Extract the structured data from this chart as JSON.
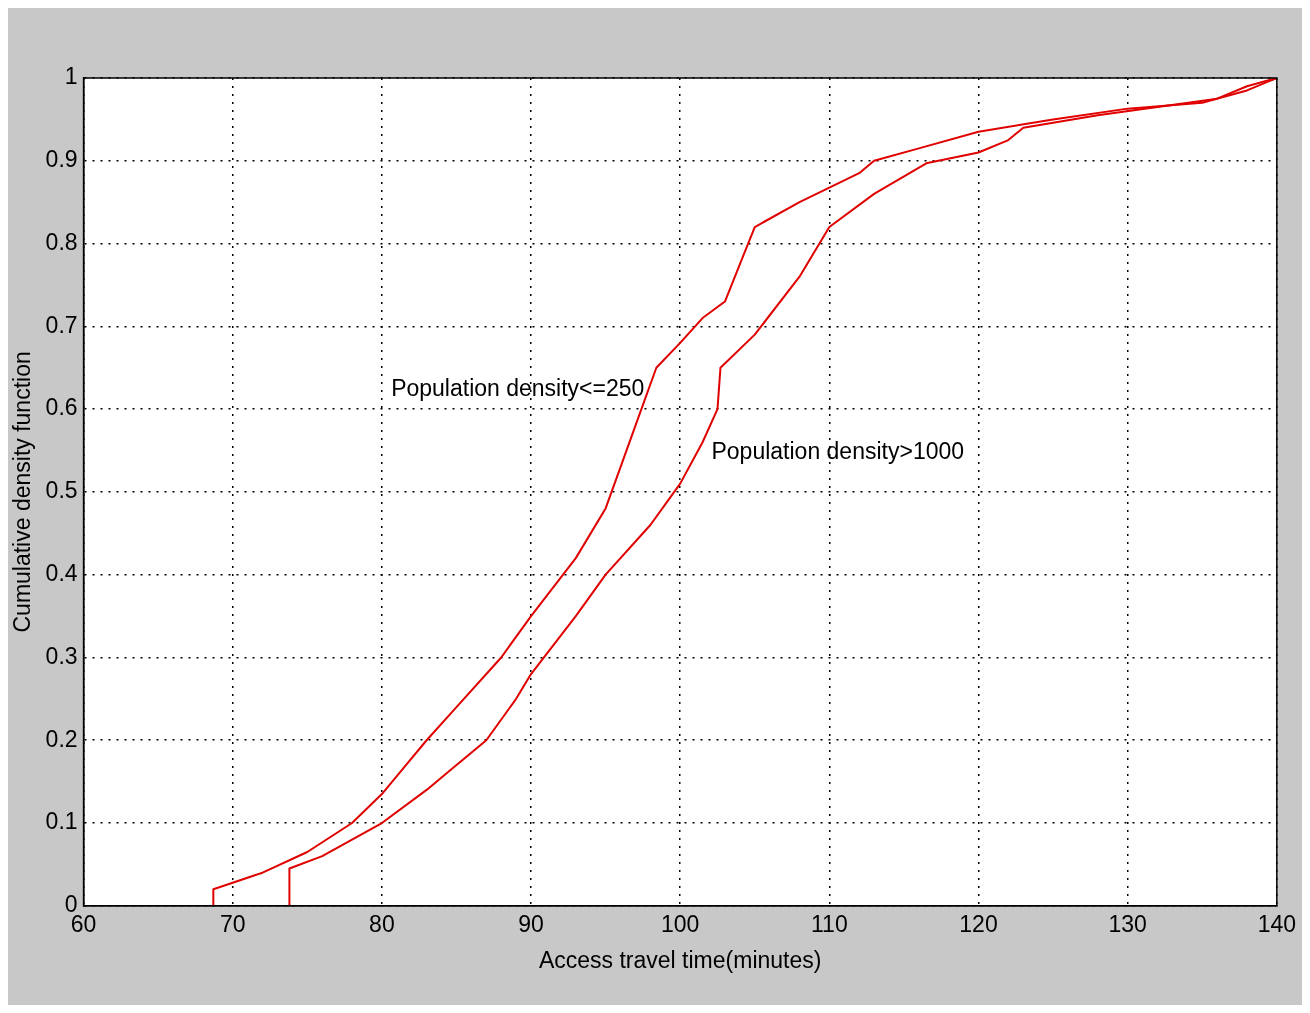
{
  "chart_data": {
    "type": "line",
    "xlabel": "Access travel time(minutes)",
    "ylabel": "Cumulative density function",
    "xlim": [
      60,
      140
    ],
    "xticks": [
      60,
      70,
      80,
      90,
      100,
      110,
      120,
      130,
      140
    ],
    "ylim": [
      0,
      1
    ],
    "yticks": [
      0,
      0.1,
      0.2,
      0.3,
      0.4,
      0.5,
      0.6,
      0.7,
      0.8,
      0.9,
      1
    ],
    "grid": true,
    "legend": false,
    "marker": "none",
    "line_style": "solid",
    "series": [
      {
        "name": "Population density<=250",
        "color": "#e00000",
        "x": [
          68.7,
          68.7,
          72,
          75,
          78,
          80,
          83,
          85,
          88,
          90,
          93,
          95,
          96,
          97,
          98.4,
          100,
          101.5,
          103,
          105,
          108,
          112,
          113,
          116,
          120,
          125,
          130,
          135,
          138,
          140
        ],
        "values": [
          0,
          0.02,
          0.04,
          0.065,
          0.1,
          0.135,
          0.2,
          0.24,
          0.3,
          0.35,
          0.42,
          0.48,
          0.53,
          0.58,
          0.65,
          0.68,
          0.71,
          0.73,
          0.82,
          0.85,
          0.885,
          0.9,
          0.915,
          0.935,
          0.95,
          0.963,
          0.97,
          0.985,
          1
        ]
      },
      {
        "name": "Population density>1000",
        "color": "#e00000",
        "x": [
          73.8,
          73.8,
          76,
          80,
          83,
          85,
          87,
          89,
          90,
          93,
          95,
          98,
          100,
          101.5,
          102.5,
          102.7,
          105,
          108,
          110,
          113,
          116.5,
          120,
          122,
          123,
          128,
          132,
          136,
          138,
          140
        ],
        "values": [
          0,
          0.045,
          0.06,
          0.1,
          0.14,
          0.17,
          0.2,
          0.25,
          0.28,
          0.35,
          0.4,
          0.46,
          0.51,
          0.56,
          0.6,
          0.65,
          0.69,
          0.76,
          0.82,
          0.86,
          0.897,
          0.91,
          0.925,
          0.94,
          0.955,
          0.965,
          0.975,
          0.99,
          1
        ]
      }
    ]
  }
}
